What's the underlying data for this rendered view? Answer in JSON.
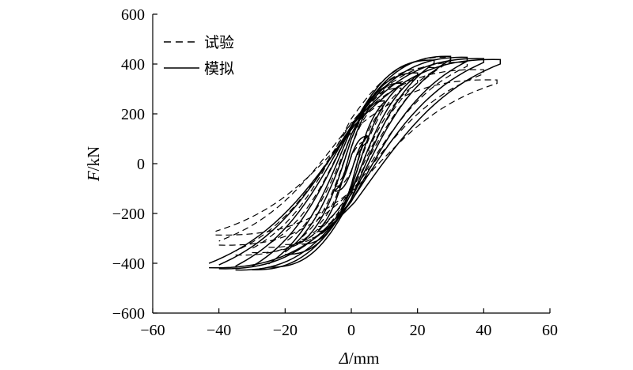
{
  "chart_data": {
    "type": "line",
    "title": "",
    "xlabel": {
      "italic": "Δ",
      "unit": "/mm"
    },
    "ylabel": {
      "italic": "F",
      "unit": "/kN"
    },
    "xlim": [
      -60,
      60
    ],
    "ylim": [
      -600,
      600
    ],
    "xticks": [
      -60,
      -40,
      -20,
      0,
      20,
      40,
      60
    ],
    "yticks": [
      -600,
      -400,
      -200,
      0,
      200,
      400,
      600
    ],
    "xtick_labels": [
      "−60",
      "−40",
      "−20",
      "0",
      "20",
      "40",
      "60"
    ],
    "ytick_labels": [
      "−600",
      "−400",
      "−200",
      "0",
      "200",
      "400",
      "600"
    ],
    "grid": false,
    "legend": {
      "placement": "top-left"
    },
    "series": [
      {
        "name": "试验",
        "style": "dashed",
        "loops": [
          {
            "amp_pos": 5,
            "amp_neg": -5,
            "f_pos": 90,
            "f_neg": -90,
            "pinch": 0.2
          },
          {
            "amp_pos": 10,
            "amp_neg": -10,
            "f_pos": 230,
            "f_neg": -250,
            "pinch": 0.2
          },
          {
            "amp_pos": 15,
            "amp_neg": -15,
            "f_pos": 300,
            "f_neg": -300,
            "pinch": 0.25
          },
          {
            "amp_pos": 20,
            "amp_neg": -20,
            "f_pos": 330,
            "f_neg": -320,
            "pinch": 0.3
          },
          {
            "amp_pos": 25,
            "amp_neg": -25,
            "f_pos": 380,
            "f_neg": -330,
            "pinch": 0.35
          },
          {
            "amp_pos": 30,
            "amp_neg": -30,
            "f_pos": 420,
            "f_neg": -350,
            "pinch": 0.4
          },
          {
            "amp_pos": 35,
            "amp_neg": -35,
            "f_pos": 400,
            "f_neg": -360,
            "pinch": 0.4
          },
          {
            "amp_pos": 40,
            "amp_neg": -40,
            "f_pos": 370,
            "f_neg": -320,
            "pinch": 0.45
          },
          {
            "amp_pos": 44,
            "amp_neg": -41,
            "f_pos": 330,
            "f_neg": -280,
            "pinch": 0.45
          }
        ]
      },
      {
        "name": "模拟",
        "style": "solid",
        "loops": [
          {
            "amp_pos": 5,
            "amp_neg": -5,
            "f_pos": 110,
            "f_neg": -110,
            "pinch": 0.15
          },
          {
            "amp_pos": 10,
            "amp_neg": -10,
            "f_pos": 250,
            "f_neg": -270,
            "pinch": 0.15
          },
          {
            "amp_pos": 15,
            "amp_neg": -15,
            "f_pos": 320,
            "f_neg": -320,
            "pinch": 0.2
          },
          {
            "amp_pos": 20,
            "amp_neg": -20,
            "f_pos": 360,
            "f_neg": -360,
            "pinch": 0.25
          },
          {
            "amp_pos": 25,
            "amp_neg": -25,
            "f_pos": 410,
            "f_neg": -410,
            "pinch": 0.3
          },
          {
            "amp_pos": 30,
            "amp_neg": -30,
            "f_pos": 425,
            "f_neg": -420,
            "pinch": 0.3
          },
          {
            "amp_pos": 35,
            "amp_neg": -35,
            "f_pos": 420,
            "f_neg": -420,
            "pinch": 0.35
          },
          {
            "amp_pos": 40,
            "amp_neg": -40,
            "f_pos": 415,
            "f_neg": -415,
            "pinch": 0.35
          },
          {
            "amp_pos": 45,
            "amp_neg": -43,
            "f_pos": 410,
            "f_neg": -410,
            "pinch": 0.4
          }
        ]
      }
    ]
  }
}
